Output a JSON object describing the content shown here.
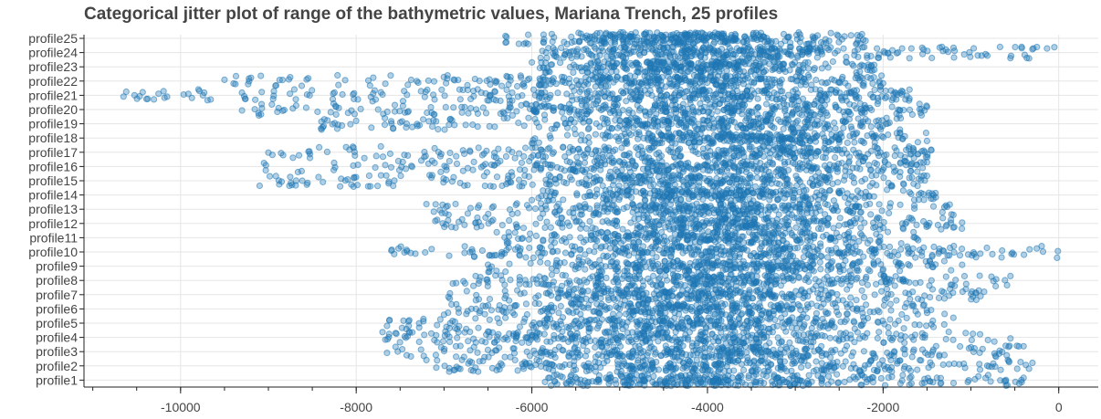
{
  "chart_data": {
    "type": "scatter",
    "subtype": "categorical-jitter",
    "title": "Categorical jitter plot of range of the bathymetric values,  Mariana Trench, 25 profiles",
    "xlabel": "",
    "ylabel": "",
    "xlim": [
      -11100,
      450
    ],
    "x_ticks": [
      -10000,
      -8000,
      -6000,
      -4000,
      -2000,
      0
    ],
    "x_tick_labels": [
      "-10000",
      "-8000",
      "-6000",
      "-4000",
      "-2000",
      "0"
    ],
    "minor_tick_step": 500,
    "grid": true,
    "marker_color": "#1f77b4",
    "categories": [
      "profile1",
      "profile2",
      "profile3",
      "profile4",
      "profile5",
      "profile6",
      "profile7",
      "profile8",
      "profile9",
      "profile10",
      "profile11",
      "profile12",
      "profile13",
      "profile14",
      "profile15",
      "profile16",
      "profile17",
      "profile18",
      "profile19",
      "profile20",
      "profile21",
      "profile22",
      "profile23",
      "profile24",
      "profile25"
    ],
    "series": [
      {
        "category": "profile1",
        "min": -5850,
        "max": -400,
        "median": -4150,
        "n": 320
      },
      {
        "category": "profile2",
        "min": -7200,
        "max": -300,
        "median": -4050,
        "n": 320
      },
      {
        "category": "profile3",
        "min": -7650,
        "max": -400,
        "median": -4100,
        "n": 330
      },
      {
        "category": "profile4",
        "min": -7700,
        "max": -550,
        "median": -4200,
        "n": 330
      },
      {
        "category": "profile5",
        "min": -7650,
        "max": -1200,
        "median": -4300,
        "n": 320
      },
      {
        "category": "profile6",
        "min": -7000,
        "max": -1300,
        "median": -4200,
        "n": 320
      },
      {
        "category": "profile7",
        "min": -6950,
        "max": -850,
        "median": -4150,
        "n": 320
      },
      {
        "category": "profile8",
        "min": -6900,
        "max": -550,
        "median": -4100,
        "n": 320
      },
      {
        "category": "profile9",
        "min": -6500,
        "max": -1100,
        "median": -4050,
        "n": 310
      },
      {
        "category": "profile10",
        "min": -7600,
        "max": -10,
        "median": -3900,
        "n": 340
      },
      {
        "category": "profile11",
        "min": -6400,
        "max": -1600,
        "median": -4000,
        "n": 300
      },
      {
        "category": "profile12",
        "min": -7100,
        "max": -1100,
        "median": -3900,
        "n": 320
      },
      {
        "category": "profile13",
        "min": -7200,
        "max": -1200,
        "median": -4000,
        "n": 320
      },
      {
        "category": "profile14",
        "min": -6000,
        "max": -1400,
        "median": -3900,
        "n": 300
      },
      {
        "category": "profile15",
        "min": -9100,
        "max": -1500,
        "median": -4000,
        "n": 330
      },
      {
        "category": "profile16",
        "min": -9050,
        "max": -1500,
        "median": -3900,
        "n": 330
      },
      {
        "category": "profile17",
        "min": -9000,
        "max": -1450,
        "median": -3800,
        "n": 320
      },
      {
        "category": "profile18",
        "min": -6000,
        "max": -1500,
        "median": -3800,
        "n": 300
      },
      {
        "category": "profile19",
        "min": -8400,
        "max": -1800,
        "median": -4000,
        "n": 320
      },
      {
        "category": "profile20",
        "min": -9300,
        "max": -1500,
        "median": -4100,
        "n": 340
      },
      {
        "category": "profile21",
        "min": -10650,
        "max": -1700,
        "median": -4200,
        "n": 370
      },
      {
        "category": "profile22",
        "min": -9500,
        "max": -2000,
        "median": -4300,
        "n": 340
      },
      {
        "category": "profile23",
        "min": -6000,
        "max": -2100,
        "median": -4100,
        "n": 310
      },
      {
        "category": "profile24",
        "min": -5900,
        "max": -50,
        "median": -3900,
        "n": 340
      },
      {
        "category": "profile25",
        "min": -6300,
        "max": -2200,
        "median": -4300,
        "n": 320
      }
    ]
  }
}
